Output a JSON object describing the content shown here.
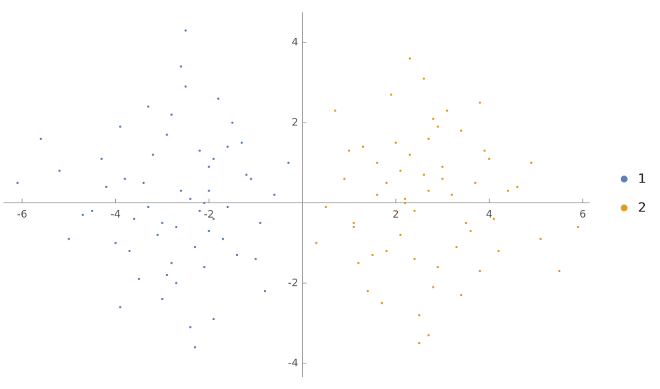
{
  "chart_data": {
    "type": "scatter",
    "xlim": [
      -6.4,
      6.15
    ],
    "ylim": [
      -4.35,
      4.75
    ],
    "xticks": [
      -6,
      -4,
      -2,
      2,
      4,
      6
    ],
    "yticks": [
      -4,
      -2,
      2,
      4
    ],
    "legend": "right",
    "series": [
      {
        "name": "1",
        "color": "#5e81b5",
        "x": [
          -2.6,
          -3.1,
          -1.9,
          -2.2,
          -3.8,
          -1.4,
          -2.9,
          -2.4,
          -0.9,
          -3.5,
          -2.0,
          -4.2,
          -1.7,
          -2.8,
          -3.3,
          -2.1,
          -1.2,
          -4.7,
          -2.5,
          -3.0,
          -1.6,
          -2.3,
          -3.9,
          -0.6,
          -2.7,
          -5.2,
          -1.9,
          -3.4,
          -2.2,
          -1.0,
          -4.0,
          -2.6,
          -3.6,
          -1.5,
          -2.9,
          -6.1,
          -2.0,
          -0.3,
          -3.2,
          -2.4,
          -4.5,
          -1.8,
          -2.7,
          -3.7,
          -1.3,
          -2.1,
          -5.0,
          -3.0,
          -0.8,
          -2.5,
          -4.3,
          -1.6,
          -2.8,
          -3.3,
          -1.1,
          -2.3,
          -5.6,
          -2.0,
          -3.9,
          -1.9
        ],
        "values": [
          0.3,
          -0.8,
          1.1,
          -0.2,
          0.6,
          -1.3,
          1.7,
          0.1,
          -0.5,
          -1.9,
          0.9,
          0.4,
          -0.9,
          2.2,
          -0.1,
          -1.6,
          0.7,
          -0.3,
          2.9,
          -2.4,
          1.4,
          -1.1,
          1.9,
          0.2,
          -0.6,
          0.8,
          -2.9,
          0.5,
          1.3,
          -1.4,
          -1.0,
          3.4,
          -0.4,
          2.0,
          -1.8,
          0.5,
          -0.7,
          1.0,
          1.2,
          -3.1,
          -0.2,
          2.6,
          -2.0,
          -1.2,
          1.5,
          0.0,
          -0.9,
          -0.5,
          -2.2,
          4.3,
          1.1,
          -0.1,
          -1.5,
          2.4,
          0.6,
          -3.6,
          1.6,
          0.3,
          -2.6,
          -0.4
        ]
      },
      {
        "name": "2",
        "color": "#e19c24",
        "x": [
          2.4,
          3.0,
          1.8,
          2.7,
          3.6,
          1.3,
          2.9,
          2.2,
          0.9,
          3.4,
          2.1,
          4.1,
          1.6,
          2.8,
          3.2,
          2.0,
          1.1,
          4.6,
          2.5,
          3.1,
          1.5,
          2.3,
          3.8,
          0.5,
          2.6,
          5.1,
          1.9,
          3.5,
          2.4,
          1.0,
          4.0,
          2.7,
          3.7,
          1.4,
          2.9,
          5.9,
          2.1,
          0.3,
          3.3,
          2.6,
          4.4,
          1.7,
          2.8,
          3.9,
          1.2,
          2.2,
          4.9,
          3.0,
          0.7,
          2.5,
          4.2,
          1.6,
          2.7,
          3.4,
          1.1,
          2.3,
          5.5,
          2.0,
          3.8,
          1.8
        ],
        "values": [
          -0.2,
          0.9,
          -1.2,
          0.3,
          -0.7,
          1.4,
          -1.6,
          0.0,
          0.6,
          1.8,
          -0.8,
          -0.4,
          1.0,
          -2.1,
          0.2,
          1.5,
          -0.6,
          0.4,
          -2.8,
          2.3,
          -1.3,
          1.2,
          -1.7,
          -0.1,
          0.7,
          -0.9,
          2.7,
          -0.5,
          -1.4,
          1.3,
          1.1,
          -3.3,
          0.5,
          -2.2,
          1.9,
          -0.6,
          0.8,
          -1.0,
          -1.1,
          3.1,
          0.3,
          -2.5,
          2.1,
          1.3,
          -1.5,
          0.1,
          1.0,
          0.6,
          2.3,
          -3.5,
          -1.2,
          0.2,
          1.6,
          -2.3,
          -0.5,
          3.6,
          -1.7,
          -0.2,
          2.5,
          0.5
        ]
      }
    ]
  }
}
